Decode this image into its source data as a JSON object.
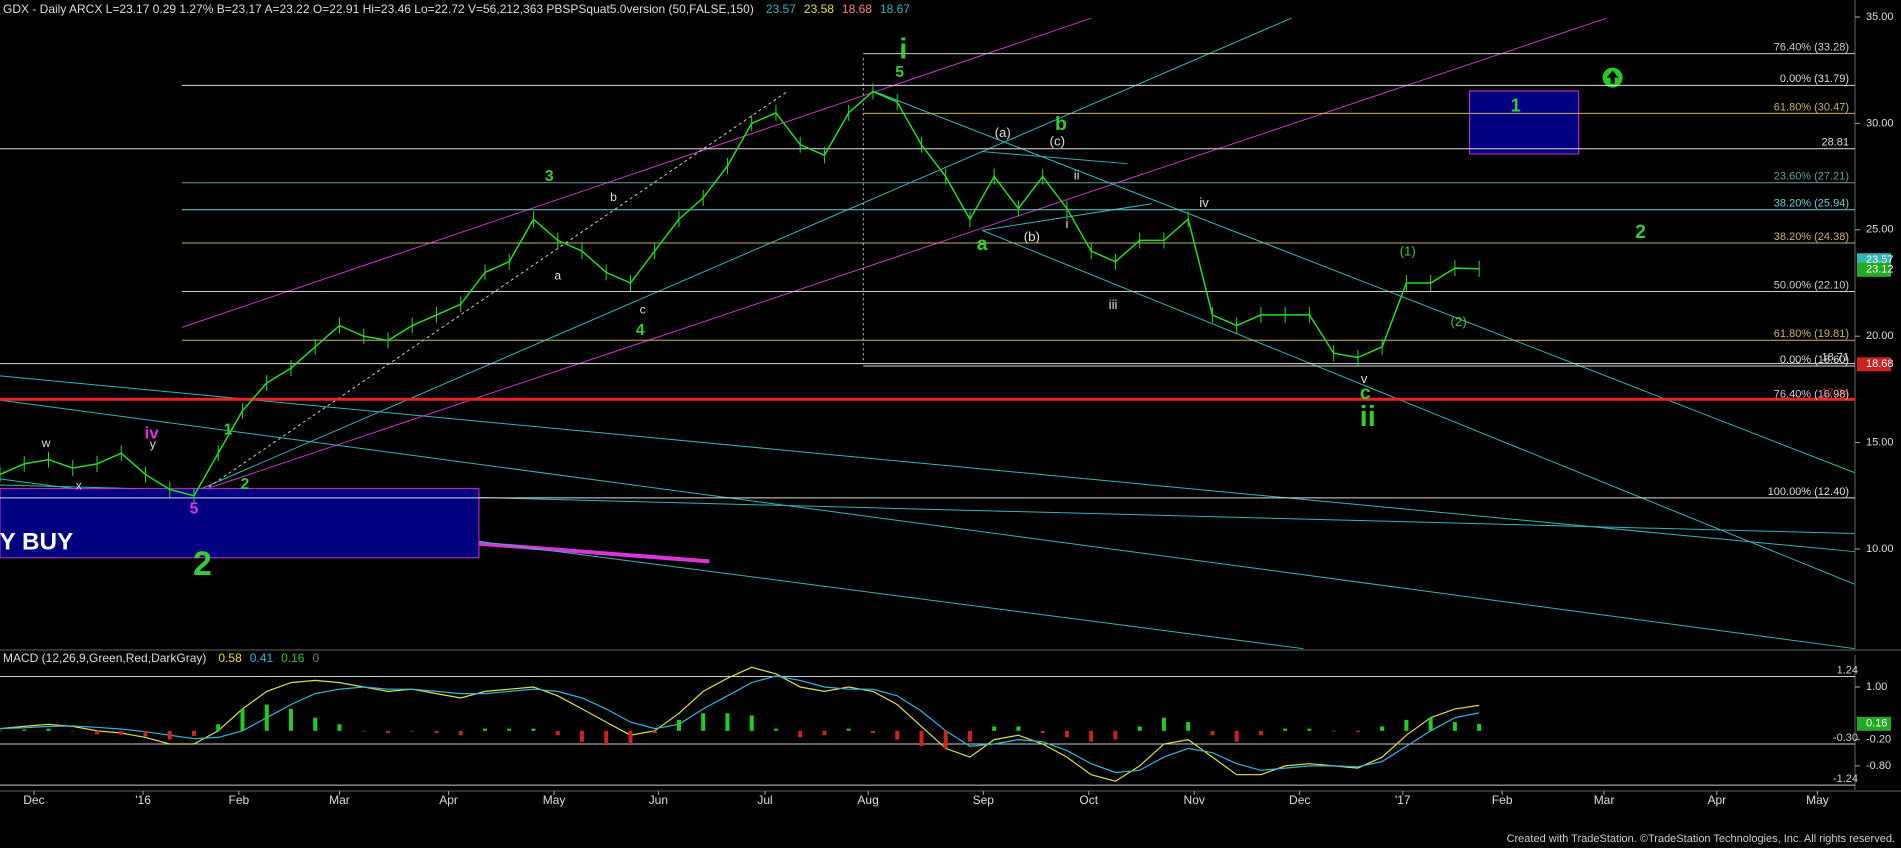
{
  "chart_data": [
    {
      "type": "line",
      "title": "GDX - Daily  ARCX  L=23.17  0.29  1.27%  B=23.17  A=23.22  O=22.91  Hi=23.46  Lo=22.72  V=56,212,363  PBSPSquat5.0version (50,FALSE,150)",
      "legend_values": [
        {
          "value": 23.57,
          "color": "#2fb7b7"
        },
        {
          "value": 23.58,
          "color": "#e0e040"
        },
        {
          "value": 18.68,
          "color": "#ff8080"
        },
        {
          "value": 18.67,
          "color": "#2fb7b7"
        }
      ],
      "x": [
        0,
        1,
        2,
        3,
        4,
        5,
        6,
        7,
        8,
        9,
        10,
        11,
        12,
        13,
        14,
        15,
        16,
        17,
        18,
        19,
        20,
        21,
        22,
        23,
        24,
        25,
        26,
        27,
        28,
        29,
        30,
        31,
        32,
        33,
        34,
        35,
        36,
        37,
        38,
        39,
        40,
        41,
        42,
        43,
        44,
        45,
        46,
        47,
        48,
        49,
        50,
        51,
        52,
        53,
        54,
        55,
        56,
        57,
        58,
        59,
        60,
        61
      ],
      "series": [
        {
          "color": "#22dd22",
          "values": [
            13.5,
            14.0,
            14.2,
            13.8,
            14.0,
            14.5,
            13.5,
            12.8,
            12.5,
            14.5,
            16.5,
            17.8,
            18.5,
            19.5,
            20.5,
            20.0,
            19.8,
            20.5,
            21.0,
            21.5,
            23.0,
            23.5,
            25.5,
            24.5,
            24.0,
            23.0,
            22.5,
            24.0,
            25.5,
            26.5,
            28.0,
            30.0,
            30.5,
            29.0,
            28.5,
            30.5,
            31.5,
            31.0,
            29.0,
            27.5,
            25.5,
            27.5,
            26.0,
            27.5,
            26.0,
            24.0,
            23.5,
            24.5,
            24.5,
            25.5,
            21.0,
            20.5,
            21.0,
            21.0,
            21.0,
            19.2,
            19.0,
            19.5,
            22.5,
            22.5,
            23.2,
            23.17
          ]
        }
      ],
      "xlim": [
        0,
        76.5
      ],
      "ylim": [
        5.3,
        35.8
      ],
      "yticks": [
        {
          "value": 35,
          "label": "35.00"
        },
        {
          "value": 30,
          "label": "30.00"
        },
        {
          "value": 25,
          "label": "25.00"
        },
        {
          "value": 20,
          "label": "20.00"
        },
        {
          "value": 15,
          "label": "15.00"
        },
        {
          "value": 10,
          "label": "10.00"
        }
      ],
      "price_markers": [
        {
          "value": 23.57,
          "color": "#2fb7b7"
        },
        {
          "value": 23.12,
          "color": "#22aa22"
        },
        {
          "value": 18.68,
          "color": "#cc2222"
        }
      ],
      "levels": [
        {
          "value": 33.28,
          "label": "76.40% (33.28)",
          "color": "#cccccc"
        },
        {
          "value": 31.79,
          "label": "0.00% (31.79)",
          "color": "#dddddd"
        },
        {
          "value": 30.47,
          "label": "61.80% (30.47)",
          "color": "#c8b464"
        },
        {
          "value": 28.81,
          "label": "28.81",
          "color": "#dddddd"
        },
        {
          "value": 27.21,
          "label": "23.60% (27.21)",
          "color": "#5fa0a0"
        },
        {
          "value": 25.94,
          "label": "38.20% (25.94)",
          "color": "#6fd0d0"
        },
        {
          "value": 24.38,
          "label": "38.20% (24.38)",
          "color": "#c8b464"
        },
        {
          "value": 22.1,
          "label": "50.00% (22.10)",
          "color": "#cccccc"
        },
        {
          "value": 19.81,
          "label": "61.80% (19.81)",
          "color": "#c8b464"
        },
        {
          "value": 18.71,
          "label": "18.71",
          "color": "#dddddd"
        },
        {
          "value": 18.6,
          "label": "0.00% (18.60)",
          "color": "#dddddd"
        },
        {
          "value": 17.04,
          "label": "17.04",
          "color": "#ee2222"
        },
        {
          "value": 16.98,
          "label": "76.40% (16.98)",
          "color": "#cccccc"
        },
        {
          "value": 12.4,
          "label": "100.00% (12.40)",
          "color": "#dddddd"
        }
      ],
      "annotations": [
        {
          "text": "i",
          "color": "#33cc33"
        },
        {
          "text": "5",
          "color": "#33cc33"
        },
        {
          "text": "3",
          "color": "#33cc33"
        },
        {
          "text": "4",
          "color": "#33cc33"
        },
        {
          "text": "1",
          "color": "#33cc33"
        },
        {
          "text": "2",
          "color": "#33cc33"
        },
        {
          "text": "a",
          "color": "#dddddd"
        },
        {
          "text": "b",
          "color": "#dddddd"
        },
        {
          "text": "c",
          "color": "#dddddd"
        },
        {
          "text": "(a)",
          "color": "#dddddd"
        },
        {
          "text": "(b)",
          "color": "#dddddd"
        },
        {
          "text": "(c)",
          "color": "#dddddd"
        },
        {
          "text": "b",
          "color": "#33cc33"
        },
        {
          "text": "a",
          "color": "#33cc33"
        },
        {
          "text": "ii",
          "color": "#dddddd"
        },
        {
          "text": "i",
          "color": "#dddddd"
        },
        {
          "text": "iii",
          "color": "#dddddd"
        },
        {
          "text": "iv",
          "color": "#dddddd"
        },
        {
          "text": "v",
          "color": "#dddddd"
        },
        {
          "text": "c",
          "color": "#33cc33"
        },
        {
          "text": "ii",
          "color": "#33cc33"
        },
        {
          "text": "(1)",
          "color": "#33cc33"
        },
        {
          "text": "(2)",
          "color": "#33cc33"
        },
        {
          "text": "2",
          "color": "#33cc33"
        },
        {
          "text": "1",
          "color": "#33cc33"
        },
        {
          "text": "w",
          "color": "#dddddd"
        },
        {
          "text": "x",
          "color": "#dddddd"
        },
        {
          "text": "y",
          "color": "#dddddd"
        },
        {
          "text": "iv",
          "color": "#dd33dd"
        },
        {
          "text": "5",
          "color": "#dd33dd"
        },
        {
          "text": "2",
          "color": "#33cc33"
        },
        {
          "text": "Y BUY",
          "color": "#ffffff"
        }
      ]
    },
    {
      "type": "line",
      "title": "MACD (12,26,9,Green,Red,DarkGray)",
      "legend_values": [
        {
          "value": 0.58,
          "color": "#e0e040"
        },
        {
          "value": 0.41,
          "color": "#2fb7e0"
        },
        {
          "value": 0.16,
          "color": "#22cc22"
        },
        {
          "value": 0.0,
          "color": "#777777"
        }
      ],
      "x": [
        0,
        1,
        2,
        3,
        4,
        5,
        6,
        7,
        8,
        9,
        10,
        11,
        12,
        13,
        14,
        15,
        16,
        17,
        18,
        19,
        20,
        21,
        22,
        23,
        24,
        25,
        26,
        27,
        28,
        29,
        30,
        31,
        32,
        33,
        34,
        35,
        36,
        37,
        38,
        39,
        40,
        41,
        42,
        43,
        44,
        45,
        46,
        47,
        48,
        49,
        50,
        51,
        52,
        53,
        54,
        55,
        56,
        57,
        58,
        59,
        60,
        61
      ],
      "series": [
        {
          "color": "#e0e040",
          "values": [
            0.05,
            0.1,
            0.15,
            0.1,
            0.0,
            -0.05,
            -0.15,
            -0.3,
            -0.3,
            0.0,
            0.5,
            0.9,
            1.1,
            1.15,
            1.1,
            1.0,
            0.9,
            0.95,
            0.85,
            0.75,
            0.9,
            0.95,
            1.0,
            0.8,
            0.5,
            0.2,
            -0.1,
            0.0,
            0.4,
            0.9,
            1.2,
            1.45,
            1.3,
            1.0,
            0.9,
            1.0,
            0.9,
            0.6,
            0.1,
            -0.4,
            -0.6,
            -0.2,
            -0.1,
            -0.3,
            -0.6,
            -1.0,
            -1.15,
            -0.8,
            -0.3,
            -0.2,
            -0.6,
            -1.0,
            -1.0,
            -0.8,
            -0.75,
            -0.8,
            -0.85,
            -0.6,
            -0.1,
            0.3,
            0.5,
            0.58
          ]
        },
        {
          "color": "#2fb7e0",
          "values": [
            0.05,
            0.07,
            0.1,
            0.11,
            0.08,
            0.04,
            -0.02,
            -0.1,
            -0.18,
            -0.15,
            0.0,
            0.3,
            0.6,
            0.85,
            0.95,
            1.0,
            0.95,
            0.95,
            0.9,
            0.85,
            0.85,
            0.9,
            0.95,
            0.9,
            0.75,
            0.5,
            0.2,
            0.05,
            0.15,
            0.5,
            0.8,
            1.1,
            1.25,
            1.15,
            1.0,
            0.95,
            0.95,
            0.8,
            0.45,
            0.0,
            -0.35,
            -0.3,
            -0.2,
            -0.25,
            -0.45,
            -0.75,
            -0.95,
            -0.9,
            -0.6,
            -0.4,
            -0.5,
            -0.75,
            -0.9,
            -0.85,
            -0.8,
            -0.8,
            -0.82,
            -0.7,
            -0.35,
            0.0,
            0.3,
            0.41
          ]
        },
        {
          "type": "bar",
          "color": "#22cc22",
          "negative_color": "#cc2222",
          "values": [
            0,
            0.03,
            0.05,
            -0.01,
            -0.08,
            -0.09,
            -0.13,
            -0.2,
            -0.12,
            0.15,
            0.5,
            0.6,
            0.5,
            0.3,
            0.15,
            0,
            -0.05,
            0,
            -0.05,
            -0.1,
            0.05,
            0.05,
            0.05,
            -0.1,
            -0.25,
            -0.3,
            -0.3,
            -0.05,
            0.25,
            0.4,
            0.4,
            0.35,
            0.05,
            -0.15,
            -0.1,
            0.05,
            -0.05,
            -0.2,
            -0.35,
            -0.4,
            -0.25,
            0.1,
            0.1,
            -0.05,
            -0.15,
            -0.25,
            -0.2,
            0.1,
            0.3,
            0.2,
            -0.1,
            -0.25,
            -0.1,
            0.05,
            0.05,
            0,
            -0.03,
            0.1,
            0.25,
            0.3,
            0.2,
            0.16
          ]
        }
      ],
      "xlim": [
        0,
        76.5
      ],
      "ylim": [
        -1.35,
        1.73
      ],
      "yticks": [
        {
          "value": 1,
          "label": "1.00"
        },
        {
          "value": -0.2,
          "label": "-0.20"
        },
        {
          "value": -0.8,
          "label": "-0.80"
        }
      ],
      "levels": [
        {
          "value": 1.24,
          "label": "1.24",
          "color": "#cccccc"
        },
        {
          "value": -0.3,
          "label": "-0.30",
          "color": "#cccccc"
        },
        {
          "value": -1.24,
          "label": "-1.24",
          "color": "#cccccc"
        }
      ],
      "price_markers": [
        {
          "value": 0.16,
          "color": "#22aa22"
        }
      ],
      "xticks": [
        {
          "value": 1.4,
          "label": "Dec"
        },
        {
          "value": 5.9,
          "label": "'16"
        },
        {
          "value": 9.85,
          "label": "Feb"
        },
        {
          "value": 14,
          "label": "Mar"
        },
        {
          "value": 18.5,
          "label": "Apr"
        },
        {
          "value": 22.85,
          "label": "May"
        },
        {
          "value": 27.15,
          "label": "Jun"
        },
        {
          "value": 31.55,
          "label": "Jul"
        },
        {
          "value": 35.8,
          "label": "Aug"
        },
        {
          "value": 40.55,
          "label": "Sep"
        },
        {
          "value": 44.9,
          "label": "Oct"
        },
        {
          "value": 49.25,
          "label": "Nov"
        },
        {
          "value": 53.6,
          "label": "Dec"
        },
        {
          "value": 57.85,
          "label": "'17"
        },
        {
          "value": 61.95,
          "label": "Feb"
        },
        {
          "value": 66.15,
          "label": "Mar"
        },
        {
          "value": 70.8,
          "label": "Apr"
        },
        {
          "value": 74.95,
          "label": "May"
        }
      ]
    }
  ],
  "footer": "Created with TradeStation. ©TradeStation Technologies, Inc. All rights reserved."
}
